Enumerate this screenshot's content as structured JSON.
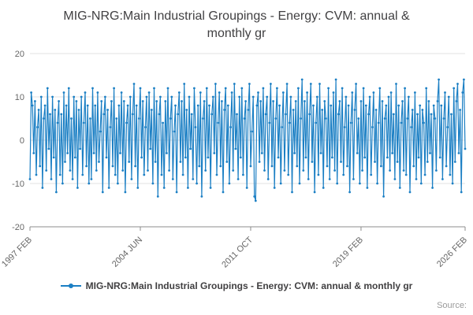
{
  "chart_data": {
    "type": "line",
    "title": "MIG-NRG:Main Industrial Groupings - Energy: CVM: annual & monthly gr",
    "xlabel": "",
    "ylabel": "",
    "ylim": [
      -20,
      20
    ],
    "y_ticks": [
      20,
      10,
      0,
      -10,
      -20
    ],
    "x_tick_labels": [
      "1997 FEB",
      "2004 JUN",
      "2011 OCT",
      "2019 FEB",
      "2026 FEB"
    ],
    "x_tick_positions": [
      0,
      0.2536,
      0.5072,
      0.7608,
      1
    ],
    "grid": true,
    "legend_position": "bottom",
    "series": [
      {
        "name": "MIG-NRG:Main Industrial Groupings - Energy: CVM: annual & monthly gr",
        "color": "#1b7fc4",
        "values": [
          -9,
          11,
          8,
          -3,
          9,
          -8,
          3,
          7,
          -6,
          10,
          -11,
          5,
          8,
          -7,
          12,
          -2,
          6,
          -9,
          10,
          -4,
          7,
          -12,
          4,
          9,
          -8,
          6,
          -10,
          11,
          -5,
          8,
          -3,
          12,
          -7,
          5,
          -9,
          10,
          -4,
          9,
          -11,
          7,
          -2,
          10,
          -8,
          4,
          11,
          -6,
          8,
          -10,
          5,
          -9,
          12,
          -3,
          8,
          -7,
          11,
          -5,
          2,
          9,
          -12,
          6,
          10,
          -4,
          7,
          -11,
          3,
          9,
          -6,
          12,
          -8,
          5,
          -10,
          8,
          -3,
          11,
          -7,
          9,
          -12,
          4,
          8,
          -5,
          10,
          -9,
          6,
          13,
          -6,
          8,
          -11,
          5,
          12,
          -4,
          9,
          -8,
          3,
          10,
          -7,
          11,
          -2,
          7,
          -10,
          12,
          -5,
          9,
          -13,
          6,
          10,
          -8,
          4,
          -11,
          9,
          -3,
          12,
          -7,
          5,
          10,
          -9,
          2,
          8,
          -12,
          6,
          11,
          -5,
          9,
          -8,
          13,
          -4,
          7,
          -11,
          10,
          -2,
          6,
          -9,
          12,
          3,
          -10,
          8,
          -6,
          11,
          -13,
          5,
          9,
          -7,
          12,
          -4,
          8,
          -11,
          6,
          10,
          -3,
          13,
          -8,
          4,
          11,
          -6,
          9,
          -12,
          7,
          12,
          -5,
          8,
          -10,
          3,
          11,
          -7,
          13,
          -2,
          6,
          -9,
          10,
          -4,
          12,
          -8,
          5,
          9,
          -11,
          7,
          13,
          -6,
          2,
          10,
          -13,
          -14,
          8,
          11,
          -5,
          9,
          -3,
          12,
          -7,
          6,
          10,
          -9,
          4,
          13,
          -6,
          9,
          -11,
          5,
          12,
          -4,
          8,
          -10,
          3,
          11,
          -7,
          6,
          13,
          -8,
          4,
          10,
          -12,
          7,
          -3,
          9,
          -6,
          12,
          -10,
          5,
          14,
          -7,
          9,
          -4,
          11,
          -9,
          6,
          13,
          -5,
          8,
          -12,
          4,
          10,
          -8,
          13,
          -3,
          7,
          -11,
          9,
          5,
          -6,
          12,
          -9,
          8,
          -4,
          11,
          -7,
          14,
          -10,
          6,
          9,
          -5,
          12,
          -8,
          3,
          10,
          -6,
          8,
          -12,
          4,
          11,
          -9,
          7,
          13,
          -3,
          5,
          -10,
          9,
          -7,
          12,
          -4,
          8,
          -11,
          6,
          10,
          -8,
          3,
          11,
          -5,
          7,
          -10,
          4,
          12,
          -6,
          9,
          -13,
          5,
          8,
          -4,
          10,
          -7,
          11,
          -3,
          6,
          -9,
          13,
          -5,
          8,
          -11,
          4,
          9,
          -7,
          12,
          -8,
          5,
          10,
          -12,
          3,
          7,
          -6,
          11,
          -9,
          6,
          -4,
          8,
          -10,
          7,
          4,
          -8,
          12,
          -5,
          9,
          -3,
          6,
          -11,
          8,
          5,
          -7,
          9,
          14,
          -4,
          8,
          -9,
          5,
          11,
          -6,
          3,
          10,
          -8,
          6,
          -10,
          12,
          -5,
          9,
          13,
          -3,
          7,
          -12,
          11,
          14,
          -2
        ]
      }
    ]
  },
  "footer": {
    "source_label": "Source:"
  }
}
